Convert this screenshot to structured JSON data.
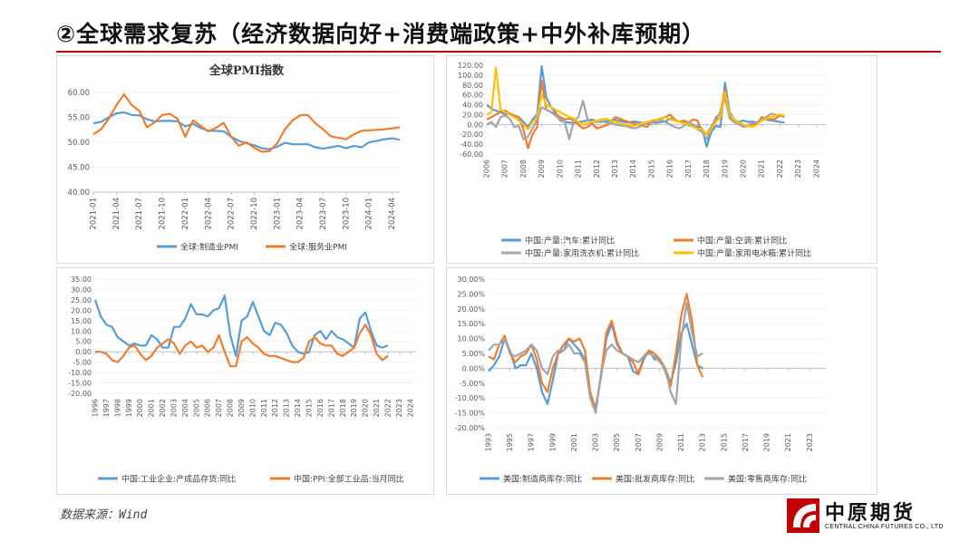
{
  "page": {
    "title": "②全球需求复苏（经济数据向好+消费端政策+中外补库预期）",
    "source": "数据来源：Wind",
    "logo_cn": "中原期货",
    "logo_en": "CENTRAL CHINA FUTURES CO., LTD"
  },
  "chart_data": [
    {
      "id": "pmi",
      "type": "line",
      "title": "全球PMI指数",
      "ylim": [
        40,
        60
      ],
      "yticks": [
        40,
        45,
        50,
        55,
        60
      ],
      "ytick_labels": [
        "40.00",
        "45.00",
        "50.00",
        "55.00",
        "60.00"
      ],
      "xlim": [
        0,
        40
      ],
      "xticks": [
        0,
        3,
        6,
        9,
        12,
        15,
        18,
        21,
        24,
        27,
        30,
        33,
        36,
        39
      ],
      "xtick_labels": [
        "2021-01",
        "2021-04",
        "2021-07",
        "2021-10",
        "2022-01",
        "2022-04",
        "2022-07",
        "2022-10",
        "2023-01",
        "2023-04",
        "2023-07",
        "2023-10",
        "2024-01",
        "2024-04"
      ],
      "x_step": 1,
      "series": [
        {
          "name": "全球:制造业PMI",
          "color": "#5b9bd5",
          "values": [
            53.8,
            54.1,
            55.0,
            55.8,
            56.0,
            55.5,
            55.4,
            54.6,
            54.2,
            54.3,
            54.3,
            54.2,
            53.2,
            53.7,
            52.9,
            52.3,
            52.3,
            52.2,
            51.1,
            50.3,
            49.8,
            49.4,
            48.8,
            48.6,
            49.1,
            49.9,
            49.6,
            49.6,
            49.6,
            49.0,
            48.7,
            49.0,
            49.3,
            48.8,
            49.3,
            49.0,
            50.0,
            50.3,
            50.6,
            50.8,
            50.5
          ]
        },
        {
          "name": "全球:服务业PMI",
          "color": "#ed7d31",
          "values": [
            51.6,
            52.6,
            54.7,
            57.4,
            59.6,
            57.5,
            56.3,
            53.0,
            54.0,
            55.5,
            55.7,
            54.7,
            51.1,
            54.4,
            53.3,
            52.2,
            52.9,
            53.9,
            51.1,
            49.3,
            50.0,
            48.9,
            48.1,
            48.2,
            49.8,
            52.6,
            54.4,
            55.4,
            55.5,
            53.8,
            52.6,
            51.2,
            50.9,
            50.6,
            51.6,
            52.3,
            52.4,
            52.5,
            52.6,
            52.8,
            53.0
          ]
        }
      ]
    },
    {
      "id": "production",
      "type": "line",
      "title": "",
      "ylim": [
        -60,
        120
      ],
      "yticks": [
        -60,
        -40,
        -20,
        0,
        20,
        40,
        60,
        80,
        100,
        120
      ],
      "ytick_labels": [
        "-60.00",
        "-40.00",
        "-20.00",
        "0.00",
        "20.00",
        "40.00",
        "60.00",
        "80.00",
        "100.00",
        "120.00"
      ],
      "xlim": [
        2006,
        2024.5
      ],
      "xticks": [
        2006,
        2007,
        2008,
        2009,
        2010,
        2011,
        2012,
        2013,
        2014,
        2015,
        2016,
        2017,
        2018,
        2019,
        2020,
        2021,
        2022,
        2023,
        2024
      ],
      "xtick_labels": [
        "2006",
        "2007",
        "2008",
        "2009",
        "2010",
        "2011",
        "2012",
        "2013",
        "2014",
        "2015",
        "2016",
        "2017",
        "2018",
        "2019",
        "2020",
        "2021",
        "2022",
        "2023",
        "2024"
      ],
      "x_start": 2006,
      "x_step": 0.25,
      "series": [
        {
          "name": "中国:产量:汽车:累计同比",
          "color": "#5b9bd5",
          "values": [
            40,
            32,
            28,
            25,
            20,
            22,
            18,
            15,
            5,
            -5,
            10,
            20,
            118,
            55,
            35,
            25,
            8,
            5,
            4,
            3,
            5,
            6,
            8,
            10,
            6,
            5,
            7,
            8,
            10,
            7,
            5,
            4,
            6,
            5,
            3,
            2,
            4,
            3,
            5,
            6,
            12,
            8,
            6,
            5,
            -2,
            -3,
            -4,
            -8,
            -45,
            -15,
            -3,
            -5,
            85,
            25,
            10,
            5,
            8,
            5,
            6,
            4,
            12,
            10,
            8,
            7,
            5,
            4
          ]
        },
        {
          "name": "中国:产量:空调:累计同比",
          "color": "#ed7d31",
          "values": [
            10,
            15,
            20,
            25,
            28,
            22,
            18,
            15,
            -10,
            -48,
            -20,
            -5,
            88,
            30,
            25,
            22,
            15,
            10,
            12,
            8,
            0,
            -8,
            -5,
            2,
            -8,
            -5,
            -2,
            3,
            15,
            12,
            8,
            5,
            2,
            0,
            -3,
            -5,
            5,
            8,
            12,
            15,
            20,
            10,
            5,
            8,
            4,
            10,
            8,
            -15,
            -20,
            -5,
            10,
            25,
            70,
            15,
            5,
            0,
            -5,
            -3,
            0,
            2,
            15,
            12,
            10,
            12,
            18,
            15
          ]
        },
        {
          "name": "中国:产量:家用洗衣机:累计同比",
          "color": "#a5a5a5",
          "values": [
            0,
            5,
            -5,
            15,
            18,
            12,
            -5,
            -3,
            -30,
            -25,
            -8,
            10,
            35,
            30,
            25,
            18,
            10,
            5,
            -30,
            8,
            15,
            48,
            10,
            5,
            5,
            8,
            4,
            3,
            0,
            -2,
            -3,
            -5,
            -8,
            -6,
            -2,
            3,
            5,
            8,
            10,
            5,
            0,
            -5,
            -8,
            -3,
            5,
            0,
            -10,
            -15,
            -30,
            -8,
            15,
            20,
            55,
            12,
            5,
            0,
            -5,
            -2,
            3,
            5,
            10,
            15,
            22,
            20,
            18,
            15
          ]
        },
        {
          "name": "中国:产量:家用电冰箱:累计同比",
          "color": "#ffc000",
          "values": [
            20,
            25,
            115,
            30,
            25,
            20,
            15,
            8,
            0,
            -10,
            5,
            15,
            60,
            40,
            35,
            30,
            25,
            20,
            15,
            12,
            5,
            0,
            2,
            5,
            8,
            10,
            12,
            8,
            5,
            2,
            0,
            -2,
            -3,
            0,
            3,
            5,
            8,
            10,
            12,
            15,
            10,
            8,
            5,
            3,
            0,
            -5,
            -8,
            -10,
            -20,
            -10,
            5,
            15,
            65,
            20,
            10,
            5,
            0,
            -3,
            -5,
            0,
            8,
            12,
            15,
            18,
            20,
            18
          ]
        }
      ]
    },
    {
      "id": "china-inventory",
      "type": "line",
      "title": "",
      "ylim": [
        -20,
        35
      ],
      "yticks": [
        -20,
        -15,
        -10,
        -5,
        0,
        5,
        10,
        15,
        20,
        25,
        30,
        35
      ],
      "ytick_labels": [
        "-20.00",
        "-15.00",
        "-10.00",
        "-5.00",
        "0.00",
        "5.00",
        "10.00",
        "15.00",
        "20.00",
        "25.00",
        "30.00",
        "35.00"
      ],
      "xlim": [
        1996,
        2024.5
      ],
      "xticks": [
        1996,
        1997,
        1998,
        1999,
        2000,
        2001,
        2002,
        2003,
        2004,
        2005,
        2006,
        2007,
        2008,
        2009,
        2010,
        2011,
        2012,
        2013,
        2014,
        2015,
        2016,
        2017,
        2018,
        2019,
        2020,
        2021,
        2022,
        2023,
        2024
      ],
      "xtick_labels": [
        "1996",
        "1997",
        "1998",
        "1999",
        "2000",
        "2001",
        "2002",
        "2003",
        "2004",
        "2005",
        "2006",
        "2007",
        "2008",
        "2009",
        "2010",
        "2011",
        "2012",
        "2013",
        "2014",
        "2015",
        "2016",
        "2017",
        "2018",
        "2019",
        "2020",
        "2021",
        "2022",
        "2023",
        "2024"
      ],
      "x_start": 1996,
      "x_step": 0.5,
      "series": [
        {
          "name": "中国:工业企业:产成品存货:同比",
          "color": "#5b9bd5",
          "values": [
            25,
            17,
            13,
            12,
            7,
            5,
            3,
            4,
            3,
            3,
            8,
            6,
            2,
            2,
            12,
            12,
            16,
            23,
            18,
            18,
            17,
            20,
            21,
            27,
            8,
            -2,
            15,
            17,
            24,
            17,
            10,
            8,
            14,
            13,
            9,
            3,
            0,
            -1,
            0,
            8,
            10,
            6,
            10,
            7,
            6,
            4,
            2,
            16,
            19,
            10,
            3,
            2,
            3
          ]
        },
        {
          "name": "中国:PPI:全部工业品:当月同比",
          "color": "#ed7d31",
          "values": [
            0,
            0,
            -1,
            -4,
            -5,
            -2,
            2,
            3,
            -1,
            -4,
            -2,
            2,
            4,
            6,
            4,
            -1,
            3,
            5,
            2,
            3,
            0,
            2,
            8,
            0,
            -7,
            -7,
            5,
            7,
            4,
            2,
            -1,
            -2,
            -2,
            -3,
            -4,
            -5,
            -5,
            -3,
            5,
            7,
            4,
            3,
            3,
            -1,
            -2,
            0,
            2,
            9,
            13,
            8,
            -1,
            -4,
            -2
          ]
        }
      ]
    },
    {
      "id": "us-inventory",
      "type": "line",
      "title": "",
      "ylim": [
        -20,
        30
      ],
      "yticks": [
        -20,
        -15,
        -10,
        -5,
        0,
        5,
        10,
        15,
        20,
        25,
        30
      ],
      "ytick_labels": [
        "-20.00%",
        "-15.00%",
        "-10.00%",
        "-5.00%",
        "0.00%",
        "5.00%",
        "10.00%",
        "15.00%",
        "20.00%",
        "25.00%",
        "30.00%"
      ],
      "xlim": [
        1993,
        2024.5
      ],
      "xticks": [
        1993,
        1995,
        1997,
        1999,
        2001,
        2003,
        2005,
        2007,
        2009,
        2011,
        2013,
        2015,
        2017,
        2019,
        2021,
        2023
      ],
      "xtick_labels": [
        "1993",
        "1995",
        "1997",
        "1999",
        "2001",
        "2003",
        "2005",
        "2007",
        "2009",
        "2011",
        "2013",
        "2015",
        "2017",
        "2019",
        "2021",
        "2023"
      ],
      "x_start": 1993,
      "x_step": 0.5,
      "series": [
        {
          "name": "美国:制造商库存:同比",
          "color": "#5b9bd5",
          "values": [
            -1,
            1,
            4,
            10,
            6,
            0,
            1,
            1,
            5,
            0,
            -8,
            -12,
            -4,
            5,
            6,
            10,
            8,
            6,
            3,
            -10,
            -13,
            -3,
            10,
            15,
            8,
            5,
            4,
            -1,
            -2,
            3,
            6,
            3,
            3,
            0,
            -5,
            2,
            12,
            15,
            8,
            1,
            0
          ]
        },
        {
          "name": "美国:批发商库存:同比",
          "color": "#ed7d31",
          "values": [
            4,
            3,
            8,
            11,
            5,
            2,
            4,
            5,
            8,
            3,
            -5,
            -8,
            0,
            5,
            8,
            10,
            9,
            10,
            6,
            -8,
            -14,
            -2,
            12,
            16,
            9,
            5,
            4,
            2,
            -2,
            4,
            6,
            5,
            3,
            -1,
            -6,
            5,
            18,
            25,
            16,
            1,
            -3
          ]
        },
        {
          "name": "美国:零售商库存:同比",
          "color": "#a5a5a5",
          "values": [
            6,
            8,
            8,
            10,
            5,
            4,
            5,
            6,
            8,
            6,
            0,
            -2,
            4,
            6,
            6,
            8,
            5,
            5,
            2,
            -10,
            -15,
            -2,
            6,
            8,
            6,
            5,
            4,
            3,
            2,
            4,
            5,
            4,
            2,
            0,
            -8,
            -12,
            10,
            22,
            12,
            4,
            5
          ]
        }
      ]
    }
  ]
}
